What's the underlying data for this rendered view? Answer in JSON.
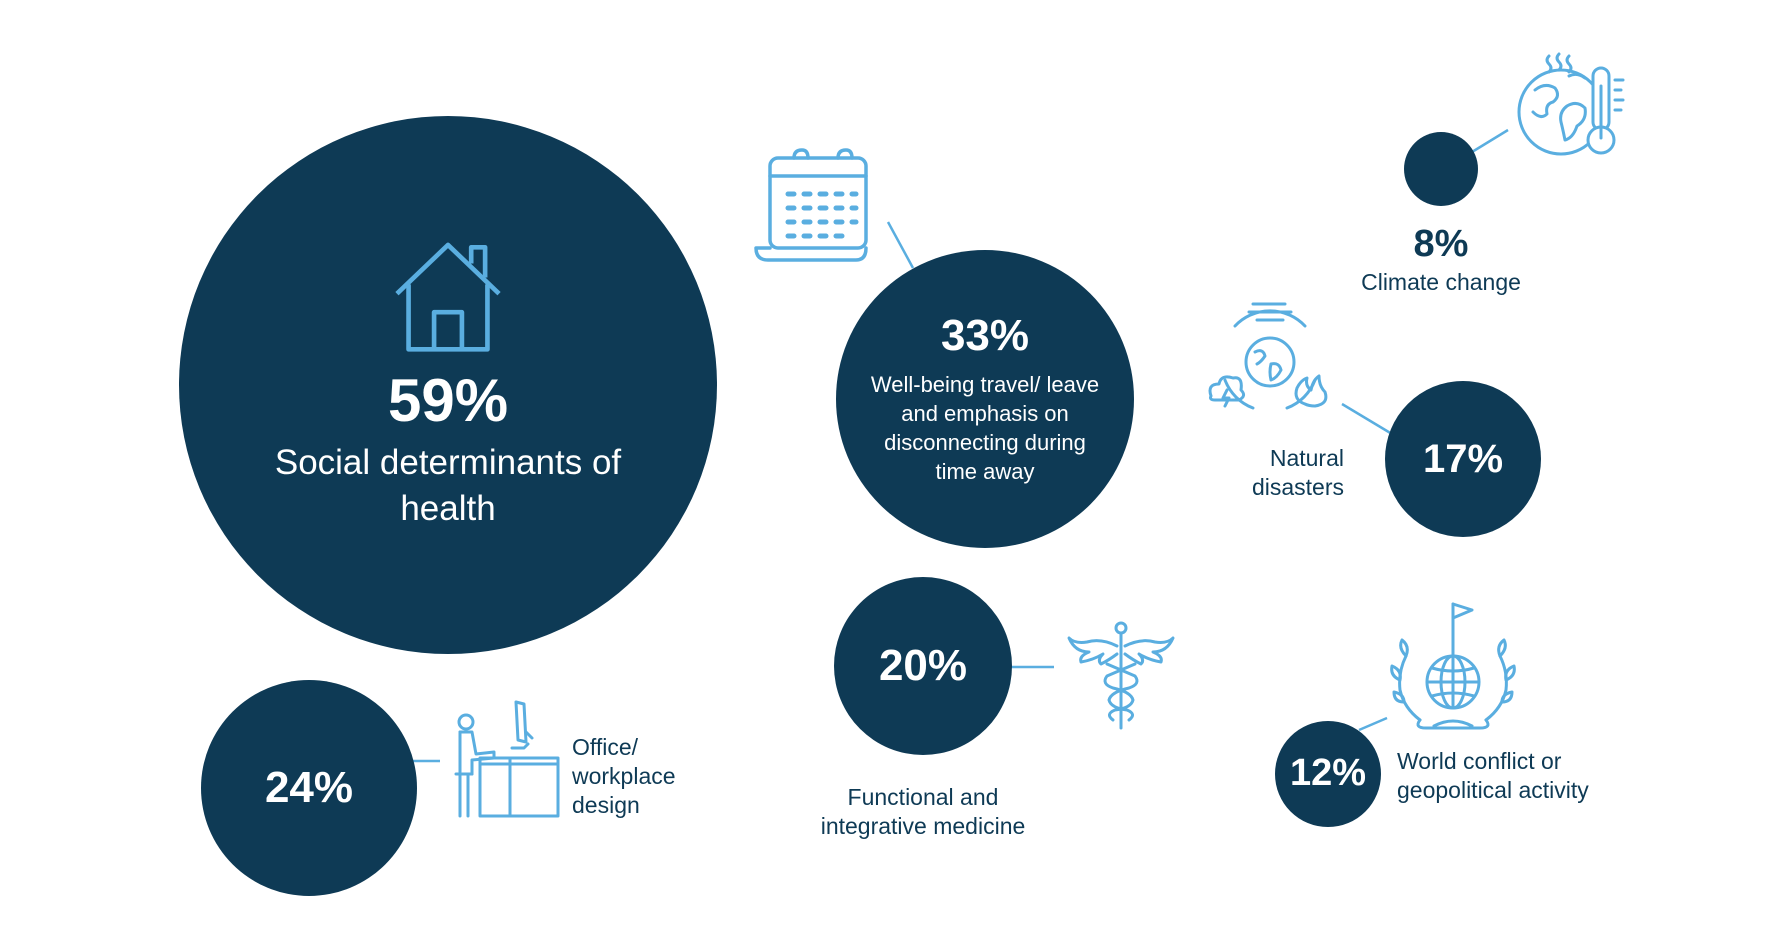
{
  "colors": {
    "circle": "#0e3a55",
    "icon": "#5aaee0",
    "text": "#0e3a55",
    "inverse_text": "#ffffff"
  },
  "items": {
    "social": {
      "percent": "59%",
      "label": "Social determinants of health",
      "icon": "house-icon"
    },
    "wellbeing": {
      "percent": "33%",
      "label": "Well-being travel/ leave and emphasis on disconnecting during time away",
      "icon": "calendar-icon"
    },
    "climate": {
      "percent": "8%",
      "label": "Climate change",
      "icon": "globe-thermometer-icon"
    },
    "disasters": {
      "percent": "17%",
      "label": "Natural disasters",
      "icon": "natural-disasters-icon"
    },
    "office": {
      "percent": "24%",
      "label": "Office/ workplace design",
      "icon": "standing-desk-icon"
    },
    "medicine": {
      "percent": "20%",
      "label": "Functional and integrative medicine",
      "icon": "caduceus-icon"
    },
    "conflict": {
      "percent": "12%",
      "label": "World conflict or geopolitical activity",
      "icon": "globe-laurel-flag-icon"
    }
  }
}
